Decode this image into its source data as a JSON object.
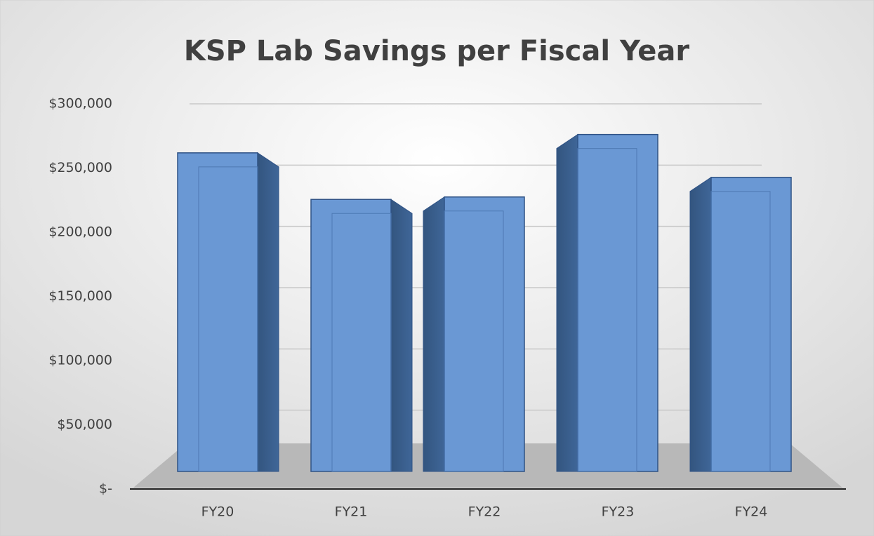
{
  "chart_data": {
    "type": "bar",
    "title": "KSP Lab Savings per Fiscal Year",
    "categories": [
      "FY20",
      "FY21",
      "FY22",
      "FY23",
      "FY24"
    ],
    "values": [
      260000,
      222000,
      224000,
      275000,
      240000
    ],
    "color": "#6a98d4",
    "ylim": [
      0,
      300000
    ],
    "yticks": [
      {
        "value": 0,
        "label": "$-"
      },
      {
        "value": 50000,
        "label": "$50,000"
      },
      {
        "value": 100000,
        "label": "$100,000"
      },
      {
        "value": 150000,
        "label": "$150,000"
      },
      {
        "value": 200000,
        "label": "$200,000"
      },
      {
        "value": 250000,
        "label": "$250,000"
      },
      {
        "value": 300000,
        "label": "$300,000"
      }
    ],
    "grid": true
  }
}
